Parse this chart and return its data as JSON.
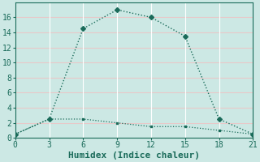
{
  "title": "",
  "xlabel": "Humidex (Indice chaleur)",
  "ylabel": "",
  "background_color": "#cce8e4",
  "grid_color_v": "#ffffff",
  "grid_color_h": "#e8c8c8",
  "line_color": "#1a6b5a",
  "line1_x": [
    0,
    3,
    6,
    9,
    12,
    15,
    18,
    21
  ],
  "line1_y": [
    0.5,
    2.5,
    14.5,
    17,
    16,
    13.5,
    2.5,
    0.5
  ],
  "line2_x": [
    0,
    3,
    6,
    9,
    12,
    15,
    18,
    21
  ],
  "line2_y": [
    0.5,
    2.5,
    2.5,
    2.0,
    1.5,
    1.5,
    1.0,
    0.5
  ],
  "xlim": [
    0,
    21
  ],
  "ylim": [
    0,
    18
  ],
  "xticks": [
    0,
    3,
    6,
    9,
    12,
    15,
    18,
    21
  ],
  "yticks": [
    0,
    2,
    4,
    6,
    8,
    10,
    12,
    14,
    16
  ],
  "label_fontsize": 8,
  "tick_fontsize": 7
}
